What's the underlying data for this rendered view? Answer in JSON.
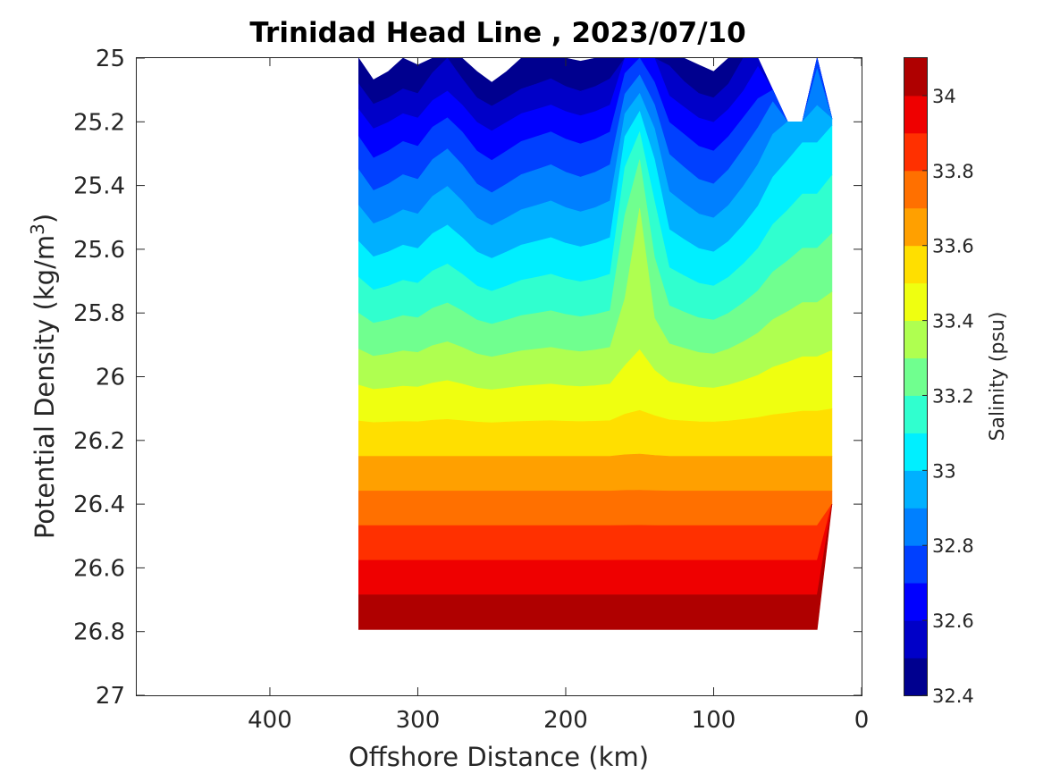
{
  "chart_data": {
    "type": "contour",
    "title": "Trinidad Head Line , 2023/07/10",
    "xlabel": "Offshore Distance (km)",
    "ylabel": "Potential Density (kg/m3)",
    "colorbar_label": "Salinity (psu)",
    "xlim": [
      490,
      0
    ],
    "ylim": [
      25,
      27
    ],
    "x_ticks": [
      400,
      300,
      200,
      100,
      0
    ],
    "y_ticks": [
      25,
      25.2,
      25.4,
      25.6,
      25.8,
      26,
      26.2,
      26.4,
      26.6,
      26.8,
      27
    ],
    "colorbar_ticks": [
      32.4,
      32.6,
      32.8,
      33,
      33.2,
      33.4,
      33.6,
      33.8,
      34
    ],
    "colorbar_range": [
      32.4,
      34.1
    ],
    "levels": [
      32.4,
      32.5,
      32.6,
      32.7,
      32.8,
      32.9,
      33.0,
      33.1,
      33.2,
      33.3,
      33.4,
      33.5,
      33.6,
      33.7,
      33.8,
      33.9,
      34.0,
      34.1
    ],
    "colors": [
      "#00008f",
      "#0000c8",
      "#0000ff",
      "#0040ff",
      "#0080ff",
      "#00b0ff",
      "#00efff",
      "#30ffcf",
      "#70ff8f",
      "#afff50",
      "#efff10",
      "#ffdf00",
      "#ffa000",
      "#ff7000",
      "#ff3000",
      "#ef0000",
      "#af0000"
    ],
    "section": {
      "x_km": [
        340,
        330,
        320,
        310,
        300,
        290,
        280,
        270,
        260,
        250,
        240,
        230,
        220,
        210,
        200,
        190,
        180,
        170,
        160,
        150,
        140,
        130,
        120,
        110,
        100,
        90,
        80,
        70,
        60,
        50,
        40,
        30,
        20
      ],
      "density_top": [
        25,
        25,
        25,
        25,
        25,
        25,
        25,
        25,
        25,
        25,
        25,
        25,
        25,
        25,
        25,
        25,
        25,
        25,
        25,
        25,
        25,
        25,
        25,
        25,
        25,
        25,
        25,
        25,
        25.1,
        25.2,
        25.2,
        25.0,
        25.19
      ],
      "density_bottom": [
        26.9,
        26.9,
        26.9,
        26.9,
        26.9,
        26.9,
        26.9,
        26.9,
        26.9,
        26.9,
        26.9,
        26.9,
        26.9,
        26.9,
        26.9,
        26.9,
        26.9,
        26.9,
        26.9,
        26.9,
        26.9,
        26.9,
        26.9,
        26.9,
        26.9,
        26.9,
        26.9,
        26.9,
        26.9,
        26.9,
        26.9,
        26.8,
        26.4
      ],
      "offset_psu": [
        0.04,
        -0.05,
        -0.02,
        0.02,
        0.0,
        0.08,
        0.12,
        0.06,
        -0.02,
        -0.06,
        -0.02,
        0.02,
        0.04,
        0.06,
        0.03,
        0.01,
        0.03,
        0.06,
        0.12,
        0.15,
        0.15,
        0.1,
        0.05,
        0.0,
        -0.02,
        0.04,
        0.12,
        0.2,
        0.3,
        0.35,
        0.4,
        0.4,
        0.45
      ],
      "peak_psu": [
        0,
        0,
        0,
        0,
        0,
        0,
        0,
        0,
        0,
        0,
        0,
        0,
        0,
        0,
        0,
        0,
        0,
        0,
        0.25,
        0.35,
        0.15,
        0,
        0,
        0,
        0,
        0,
        0,
        0,
        0,
        0,
        0,
        0,
        0
      ]
    }
  }
}
